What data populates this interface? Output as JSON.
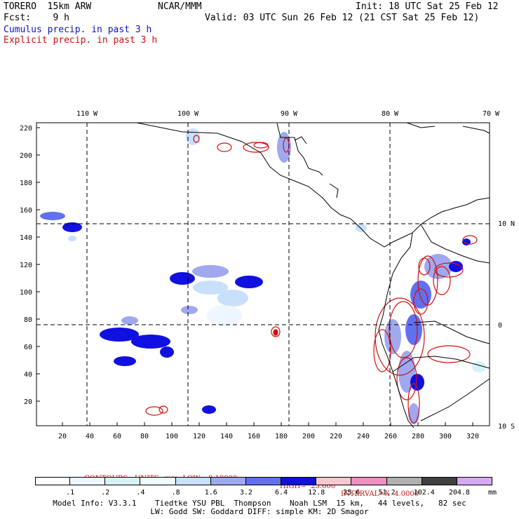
{
  "header": {
    "model": "TORERO  15km ARW",
    "center": "NCAR/MMM",
    "init": "Init: 18 UTC Sat 25 Feb 12",
    "fcst": "Fcst:    9 h",
    "valid": "Valid: 03 UTC Sun 26 Feb 12 (21 CST Sat 25 Feb 12)",
    "cumulus": "Cumulus precip. in past 3 h",
    "explicit": "Explicit precip. in past 3 h"
  },
  "map": {
    "lon_labels": [
      "110 W",
      "100 W",
      "90 W",
      "80 W",
      "70 W"
    ],
    "lat_labels": [
      "10 N",
      "0",
      "10 S"
    ],
    "y_ticks": [
      "220",
      "200",
      "180",
      "160",
      "140",
      "120",
      "100",
      "80",
      "60",
      "40",
      "20"
    ],
    "x_ticks": [
      "20",
      "40",
      "60",
      "80",
      "100",
      "120",
      "140",
      "160",
      "180",
      "200",
      "220",
      "240",
      "260",
      "280",
      "300",
      "320"
    ]
  },
  "contours": {
    "units": "CONTOURS:  UNITS=mm  LOW= 0.10000",
    "high": "HIGH=  25.600",
    "interval": "INTERVAL=X  4.0000"
  },
  "legend": {
    "labels": [
      ".1",
      ".2",
      ".4",
      ".8",
      "1.6",
      "3.2",
      "6.4",
      "12.8",
      "25.6",
      "51.2",
      "102.4",
      "204.8"
    ],
    "unit": "mm",
    "colors": [
      "#ffffff",
      "#eef6ff",
      "#d8f2f6",
      "#eefcff",
      "#c8e0fa",
      "#a0a8f0",
      "#6070f0",
      "#1010e0",
      "#f8c8d0",
      "#f090c0",
      "#b0b0b0",
      "#404040",
      "#d8a8f8"
    ]
  },
  "footer": {
    "line1": "Model Info: V3.3.1    Tiedtke YSU PBL  Thompson    Noah LSM  15 km,   44 levels,   82 sec",
    "line2": "LW: Godd SW: Goddard DIFF: simple KM: 2D Smagor"
  }
}
